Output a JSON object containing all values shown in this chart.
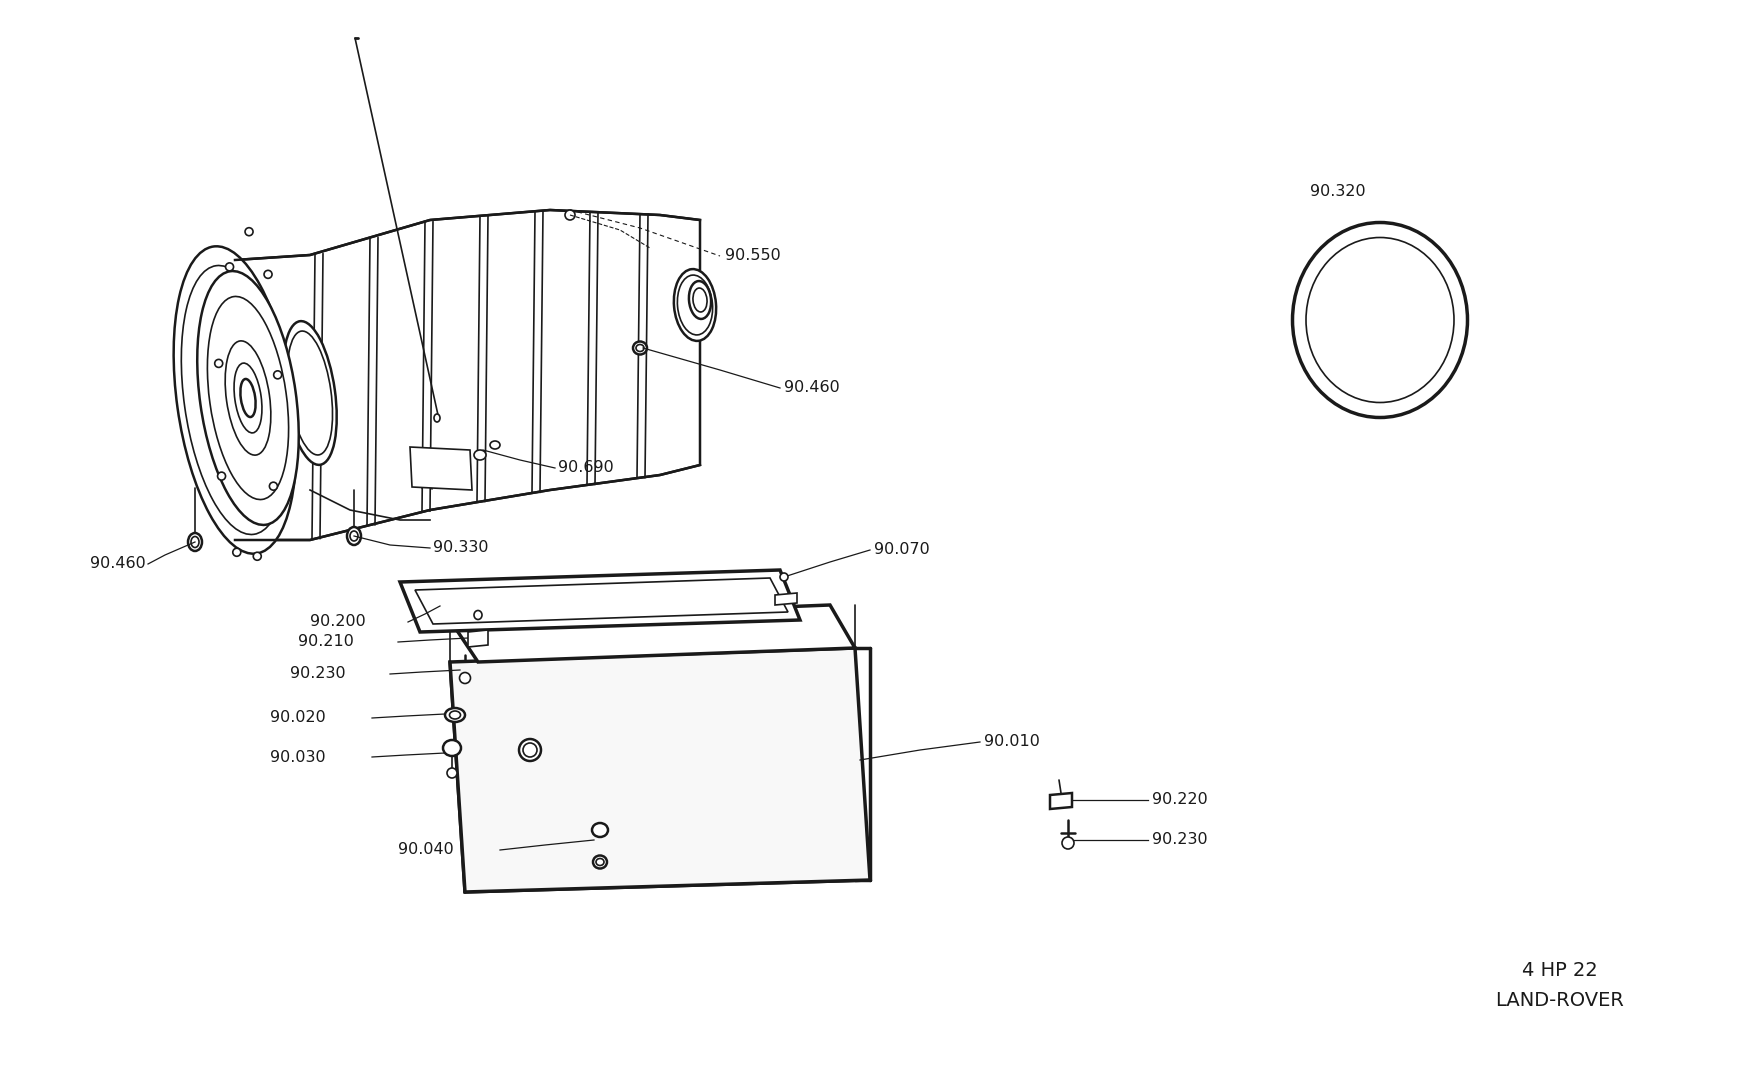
{
  "bg_color": "#ffffff",
  "line_color": "#1a1a1a",
  "title_line1": "4 HP 22",
  "title_line2": "LAND-ROVER",
  "figsize": [
    17.5,
    10.9
  ],
  "dpi": 100
}
